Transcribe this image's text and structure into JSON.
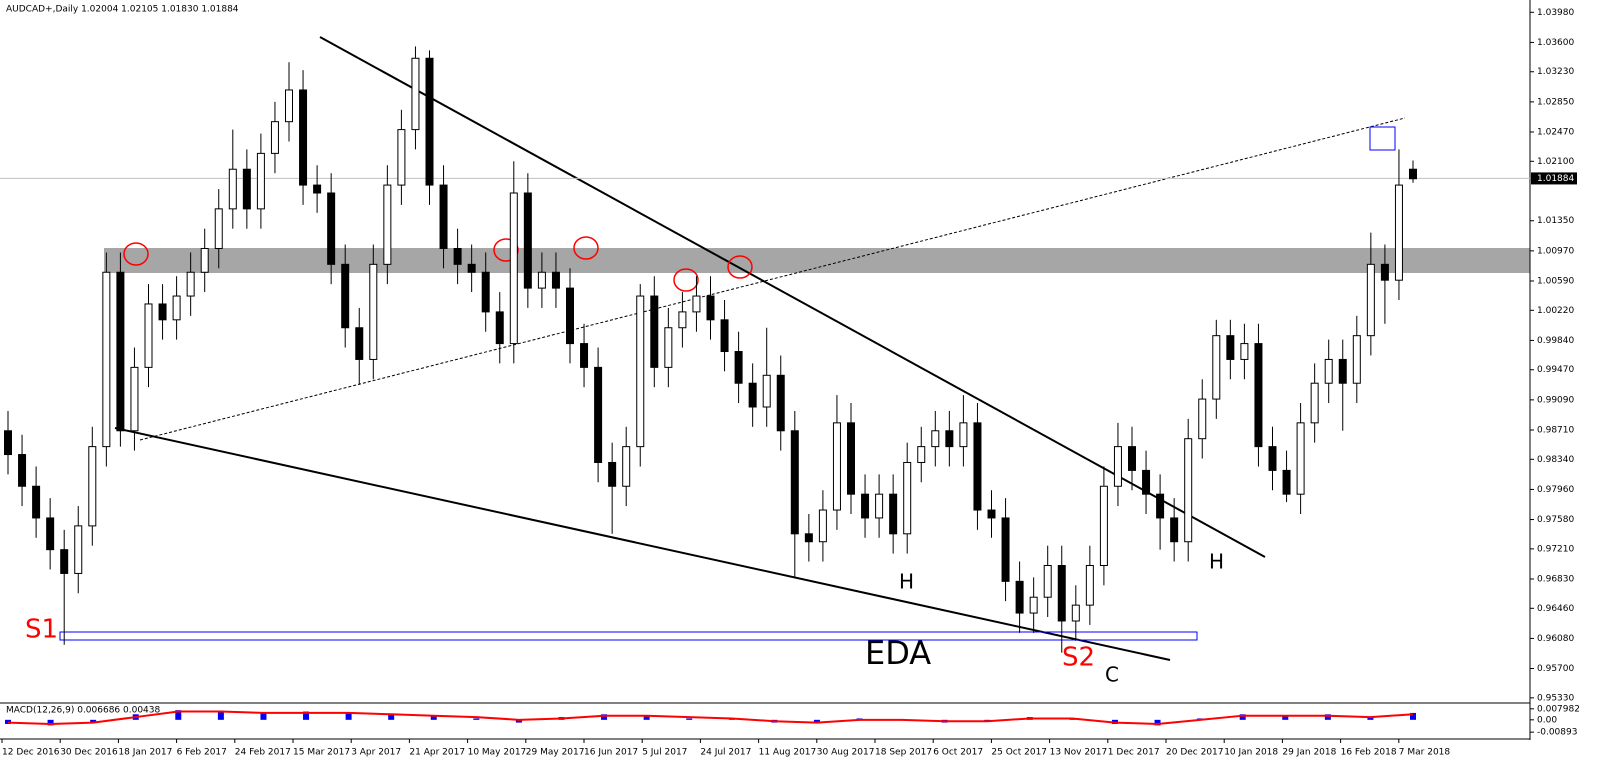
{
  "chart_data": {
    "type": "candlestick",
    "title": "AUDCAD+,Daily  1.02004 1.02105 1.01830 1.01884",
    "last_price": 1.01884,
    "bull_color": "#ffffff",
    "bear_color": "#000000",
    "ylim": [
      0.9524,
      1.0411
    ],
    "yticks": [
      {
        "value": 1.0398,
        "label": "1.03980"
      },
      {
        "value": 1.036,
        "label": "1.03600"
      },
      {
        "value": 1.0323,
        "label": "1.03230"
      },
      {
        "value": 1.0285,
        "label": "1.02850"
      },
      {
        "value": 1.0247,
        "label": "1.02470"
      },
      {
        "value": 1.021,
        "label": "1.02100"
      },
      {
        "value": 1.0135,
        "label": "1.01350"
      },
      {
        "value": 1.0097,
        "label": "1.00970"
      },
      {
        "value": 1.0059,
        "label": "1.00590"
      },
      {
        "value": 1.0022,
        "label": "1.00220"
      },
      {
        "value": 0.9984,
        "label": "0.99840"
      },
      {
        "value": 0.9947,
        "label": "0.99470"
      },
      {
        "value": 0.9909,
        "label": "0.99090"
      },
      {
        "value": 0.9871,
        "label": "0.98710"
      },
      {
        "value": 0.9834,
        "label": "0.98340"
      },
      {
        "value": 0.9796,
        "label": "0.97960"
      },
      {
        "value": 0.9758,
        "label": "0.97580"
      },
      {
        "value": 0.9721,
        "label": "0.97210"
      },
      {
        "value": 0.9683,
        "label": "0.96830"
      },
      {
        "value": 0.9646,
        "label": "0.96460"
      },
      {
        "value": 0.9608,
        "label": "0.96080"
      },
      {
        "value": 0.957,
        "label": "0.95700"
      },
      {
        "value": 0.9533,
        "label": "0.95330"
      }
    ],
    "categories": [
      "12 Dec 2016",
      "30 Dec 2016",
      "18 Jan 2017",
      "6 Feb 2017",
      "24 Feb 2017",
      "15 Mar 2017",
      "3 Apr 2017",
      "21 Apr 2017",
      "10 May 2017",
      "29 May 2017",
      "16 Jun 2017",
      "5 Jul 2017",
      "24 Jul 2017",
      "11 Aug 2017",
      "30 Aug 2017",
      "18 Sep 2017",
      "6 Oct 2017",
      "25 Oct 2017",
      "13 Nov 2017",
      "1 Dec 2017",
      "20 Dec 2017",
      "10 Jan 2018",
      "29 Jan 2018",
      "16 Feb 2018",
      "7 Mar 2018"
    ],
    "ohlc": [
      [
        0.987,
        0.9895,
        0.9815,
        0.984
      ],
      [
        0.984,
        0.9865,
        0.9775,
        0.98
      ],
      [
        0.98,
        0.9825,
        0.9735,
        0.976
      ],
      [
        0.976,
        0.9785,
        0.9695,
        0.972
      ],
      [
        0.972,
        0.9745,
        0.96,
        0.969
      ],
      [
        0.969,
        0.9775,
        0.9665,
        0.975
      ],
      [
        0.975,
        0.9875,
        0.9725,
        0.985
      ],
      [
        0.985,
        1.0095,
        0.9825,
        1.007
      ],
      [
        1.007,
        1.0095,
        0.985,
        0.987
      ],
      [
        0.987,
        0.9975,
        0.9845,
        0.995
      ],
      [
        0.995,
        1.0055,
        0.9925,
        1.003
      ],
      [
        1.003,
        1.0055,
        0.9985,
        1.001
      ],
      [
        1.001,
        1.0065,
        0.9985,
        1.004
      ],
      [
        1.004,
        1.0095,
        1.0015,
        1.007
      ],
      [
        1.007,
        1.0125,
        1.0045,
        1.01
      ],
      [
        1.01,
        1.0175,
        1.0075,
        1.015
      ],
      [
        1.015,
        1.025,
        1.0125,
        1.02
      ],
      [
        1.02,
        1.0225,
        1.0125,
        1.015
      ],
      [
        1.015,
        1.0245,
        1.0125,
        1.022
      ],
      [
        1.022,
        1.0285,
        1.0195,
        1.026
      ],
      [
        1.026,
        1.0335,
        1.0235,
        1.03
      ],
      [
        1.03,
        1.0325,
        1.0155,
        1.018
      ],
      [
        1.018,
        1.0205,
        1.0145,
        1.017
      ],
      [
        1.017,
        1.0195,
        1.0055,
        1.008
      ],
      [
        1.008,
        1.0105,
        0.9975,
        1.0
      ],
      [
        1.0,
        1.0025,
        0.9928,
        0.996
      ],
      [
        0.996,
        1.0105,
        0.9935,
        1.008
      ],
      [
        1.008,
        1.0205,
        1.0055,
        1.018
      ],
      [
        1.018,
        1.0275,
        1.0155,
        1.025
      ],
      [
        1.025,
        1.0355,
        1.0225,
        1.034
      ],
      [
        1.034,
        1.035,
        1.0155,
        1.018
      ],
      [
        1.018,
        1.0205,
        1.0075,
        1.01
      ],
      [
        1.01,
        1.0125,
        1.0055,
        1.008
      ],
      [
        1.008,
        1.0105,
        1.0045,
        1.007
      ],
      [
        1.007,
        1.0095,
        0.9995,
        1.002
      ],
      [
        1.002,
        1.0045,
        0.9955,
        0.998
      ],
      [
        0.998,
        1.021,
        0.9955,
        1.017
      ],
      [
        1.017,
        1.0195,
        1.0025,
        1.005
      ],
      [
        1.005,
        1.0095,
        1.0025,
        1.007
      ],
      [
        1.007,
        1.0095,
        1.0025,
        1.005
      ],
      [
        1.005,
        1.0075,
        0.9955,
        0.998
      ],
      [
        0.998,
        1.0005,
        0.9925,
        0.995
      ],
      [
        0.995,
        0.9975,
        0.9805,
        0.983
      ],
      [
        0.983,
        0.9855,
        0.974,
        0.98
      ],
      [
        0.98,
        0.9875,
        0.9775,
        0.985
      ],
      [
        0.985,
        1.0055,
        0.9825,
        1.004
      ],
      [
        1.004,
        1.0065,
        0.9925,
        0.995
      ],
      [
        0.995,
        1.0025,
        0.9925,
        1.0
      ],
      [
        1.0,
        1.0045,
        0.9975,
        1.002
      ],
      [
        1.002,
        1.0065,
        0.9995,
        1.004
      ],
      [
        1.004,
        1.0065,
        0.9985,
        1.001
      ],
      [
        1.001,
        1.0035,
        0.9945,
        0.997
      ],
      [
        0.997,
        0.9995,
        0.9905,
        0.993
      ],
      [
        0.993,
        0.9955,
        0.9875,
        0.99
      ],
      [
        0.99,
        1.0,
        0.9875,
        0.994
      ],
      [
        0.994,
        0.9965,
        0.9845,
        0.987
      ],
      [
        0.987,
        0.9895,
        0.9685,
        0.974
      ],
      [
        0.974,
        0.9765,
        0.9705,
        0.973
      ],
      [
        0.973,
        0.9795,
        0.9705,
        0.977
      ],
      [
        0.977,
        0.9915,
        0.9745,
        0.988
      ],
      [
        0.988,
        0.9905,
        0.9765,
        0.979
      ],
      [
        0.979,
        0.9815,
        0.9735,
        0.976
      ],
      [
        0.976,
        0.9815,
        0.9735,
        0.979
      ],
      [
        0.979,
        0.9815,
        0.9715,
        0.974
      ],
      [
        0.974,
        0.9855,
        0.9715,
        0.983
      ],
      [
        0.983,
        0.9875,
        0.9805,
        0.985
      ],
      [
        0.985,
        0.9895,
        0.9825,
        0.987
      ],
      [
        0.987,
        0.9895,
        0.9825,
        0.985
      ],
      [
        0.985,
        0.9915,
        0.9825,
        0.988
      ],
      [
        0.988,
        0.9905,
        0.9745,
        0.977
      ],
      [
        0.977,
        0.9795,
        0.9735,
        0.976
      ],
      [
        0.976,
        0.9785,
        0.9655,
        0.968
      ],
      [
        0.968,
        0.9705,
        0.9615,
        0.964
      ],
      [
        0.964,
        0.9685,
        0.9615,
        0.966
      ],
      [
        0.966,
        0.9725,
        0.9635,
        0.97
      ],
      [
        0.97,
        0.9725,
        0.959,
        0.963
      ],
      [
        0.963,
        0.9675,
        0.9605,
        0.965
      ],
      [
        0.965,
        0.9725,
        0.9625,
        0.97
      ],
      [
        0.97,
        0.9825,
        0.9675,
        0.98
      ],
      [
        0.98,
        0.988,
        0.9775,
        0.985
      ],
      [
        0.985,
        0.9875,
        0.9795,
        0.982
      ],
      [
        0.982,
        0.9845,
        0.9765,
        0.979
      ],
      [
        0.979,
        0.9815,
        0.972,
        0.976
      ],
      [
        0.976,
        0.9785,
        0.9705,
        0.973
      ],
      [
        0.973,
        0.9885,
        0.9705,
        0.986
      ],
      [
        0.986,
        0.9935,
        0.9835,
        0.991
      ],
      [
        0.991,
        1.001,
        0.9885,
        0.999
      ],
      [
        0.999,
        1.001,
        0.9935,
        0.996
      ],
      [
        0.996,
        1.0005,
        0.9935,
        0.998
      ],
      [
        0.998,
        1.0005,
        0.9825,
        0.985
      ],
      [
        0.985,
        0.9875,
        0.9795,
        0.982
      ],
      [
        0.982,
        0.9845,
        0.978,
        0.979
      ],
      [
        0.979,
        0.9905,
        0.9765,
        0.988
      ],
      [
        0.988,
        0.9955,
        0.9855,
        0.993
      ],
      [
        0.993,
        0.9985,
        0.9905,
        0.996
      ],
      [
        0.996,
        0.9985,
        0.987,
        0.993
      ],
      [
        0.993,
        1.0015,
        0.9905,
        0.999
      ],
      [
        0.999,
        1.012,
        0.9965,
        1.008
      ],
      [
        1.008,
        1.0105,
        1.0005,
        1.006
      ],
      [
        1.006,
        1.0225,
        1.0035,
        1.018
      ],
      [
        1.02,
        1.0211,
        1.0183,
        1.0188
      ]
    ],
    "annotations": [
      {
        "text": "S1"
      },
      {
        "text": "S2"
      },
      {
        "text": "H"
      },
      {
        "text": "H"
      },
      {
        "text": "EDA"
      },
      {
        "text": "C"
      }
    ],
    "macd": {
      "label": "MACD(12,26,9) 0.006686 0.00438",
      "hist_color": "#0000ff",
      "signal_color": "#ff0000",
      "ylim": [
        -0.0139,
        0.0122
      ],
      "yticks": [
        0.007982,
        {
          "value": 0,
          "label": "0.00"
        },
        -0.00893
      ],
      "histogram": [
        -0.003,
        -0.004,
        -0.002,
        0.004,
        0.007,
        0.006,
        0.005,
        0.006,
        0.005,
        0.004,
        0.003,
        0.001,
        -0.002,
        0.002,
        0.004,
        0.003,
        0.001,
        0.001,
        -0.002,
        -0.002,
        0.001,
        0,
        -0.002,
        -0.001,
        0.002,
        0.001,
        -0.003,
        -0.004,
        0.001,
        0.004,
        0.003,
        0.004,
        0.002,
        0.005
      ],
      "signal": [
        -0.002,
        -0.003,
        -0.002,
        0.002,
        0.006,
        0.006,
        0.005,
        0.005,
        0.005,
        0.004,
        0.003,
        0.002,
        0,
        0.001,
        0.003,
        0.003,
        0.002,
        0.001,
        -0.001,
        -0.002,
        0,
        0,
        -0.001,
        -0.001,
        0.001,
        0.001,
        -0.002,
        -0.003,
        0,
        0.003,
        0.003,
        0.003,
        0.002,
        0.004
      ]
    }
  }
}
